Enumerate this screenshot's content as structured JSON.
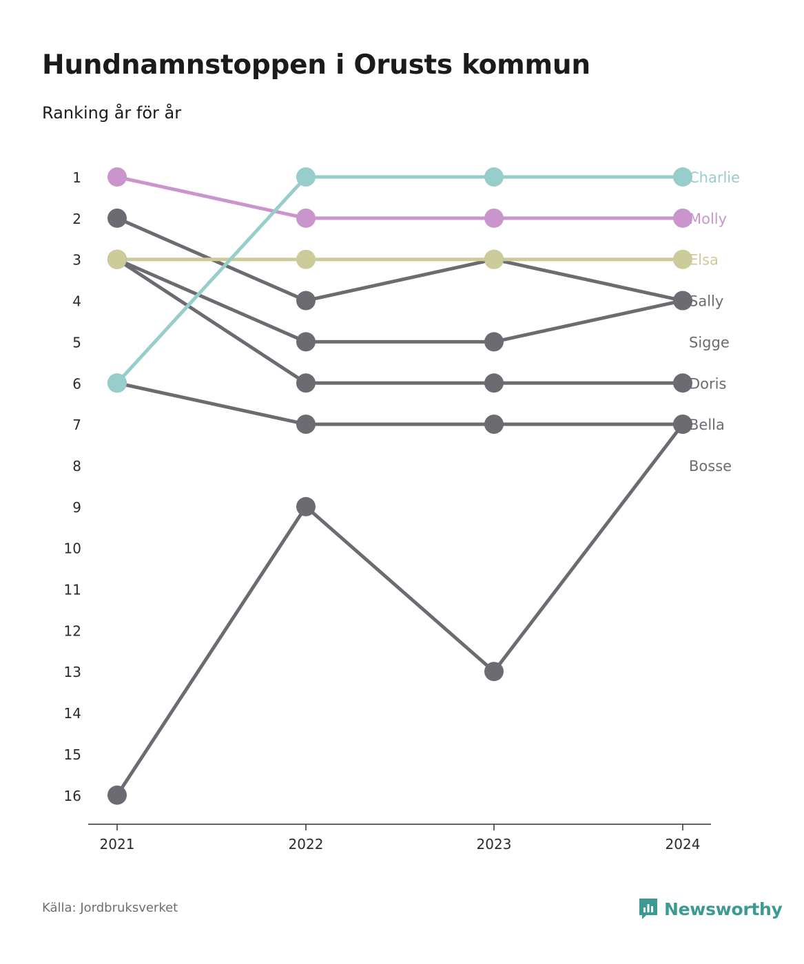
{
  "title": "Hundnamnstoppen i Orusts kommun",
  "subtitle": "Ranking år för år",
  "source": "Källa: Jordbruksverket",
  "brand": {
    "name": "Newsworthy",
    "icon": "newsworthy-logo-icon",
    "color": "#3c9a93"
  },
  "chart_data": {
    "type": "line",
    "title": "Hundnamnstoppen i Orusts kommun",
    "subtitle": "Ranking år för år",
    "x": [
      "2021",
      "2022",
      "2023",
      "2024"
    ],
    "y_ticks": [
      "1",
      "2",
      "3",
      "4",
      "5",
      "6",
      "7",
      "8",
      "9",
      "10",
      "11",
      "12",
      "13",
      "14",
      "15",
      "16"
    ],
    "ylim": [
      1,
      16
    ],
    "y_inverted": true,
    "grid": false,
    "legend": "end-labels-right",
    "series": [
      {
        "name": "Bosse",
        "values": [
          16,
          9,
          13,
          7
        ],
        "color": "#6d6b72"
      },
      {
        "name": "Bella",
        "values": [
          6,
          7,
          7,
          7
        ],
        "color": "#6d6b72"
      },
      {
        "name": "Doris",
        "values": [
          3,
          6,
          6,
          6
        ],
        "color": "#6d6b72"
      },
      {
        "name": "Sigge",
        "values": [
          3,
          5,
          5,
          4
        ],
        "color": "#6d6b72"
      },
      {
        "name": "Sally",
        "values": [
          2,
          4,
          3,
          4
        ],
        "color": "#6d6b72"
      },
      {
        "name": "Elsa",
        "values": [
          3,
          3,
          3,
          3
        ],
        "color": "#cccb9a"
      },
      {
        "name": "Molly",
        "values": [
          1,
          2,
          2,
          2
        ],
        "color": "#c995cc"
      },
      {
        "name": "Charlie",
        "values": [
          6,
          1,
          1,
          1
        ],
        "color": "#97cdcb"
      }
    ],
    "end_labels": [
      {
        "name": "Charlie",
        "rank": 1,
        "color": "#97cdcb"
      },
      {
        "name": "Molly",
        "rank": 2,
        "color": "#c995cc"
      },
      {
        "name": "Elsa",
        "rank": 3,
        "color": "#cccb9a"
      },
      {
        "name": "Sally",
        "rank": 4,
        "color": "#6d6b72"
      },
      {
        "name": "Sigge",
        "rank": 5,
        "color": "#6d6b72"
      },
      {
        "name": "Doris",
        "rank": 6,
        "color": "#6d6b72"
      },
      {
        "name": "Bella",
        "rank": 7,
        "color": "#6d6b72"
      },
      {
        "name": "Bosse",
        "rank": 8,
        "color": "#6d6b72"
      }
    ]
  }
}
